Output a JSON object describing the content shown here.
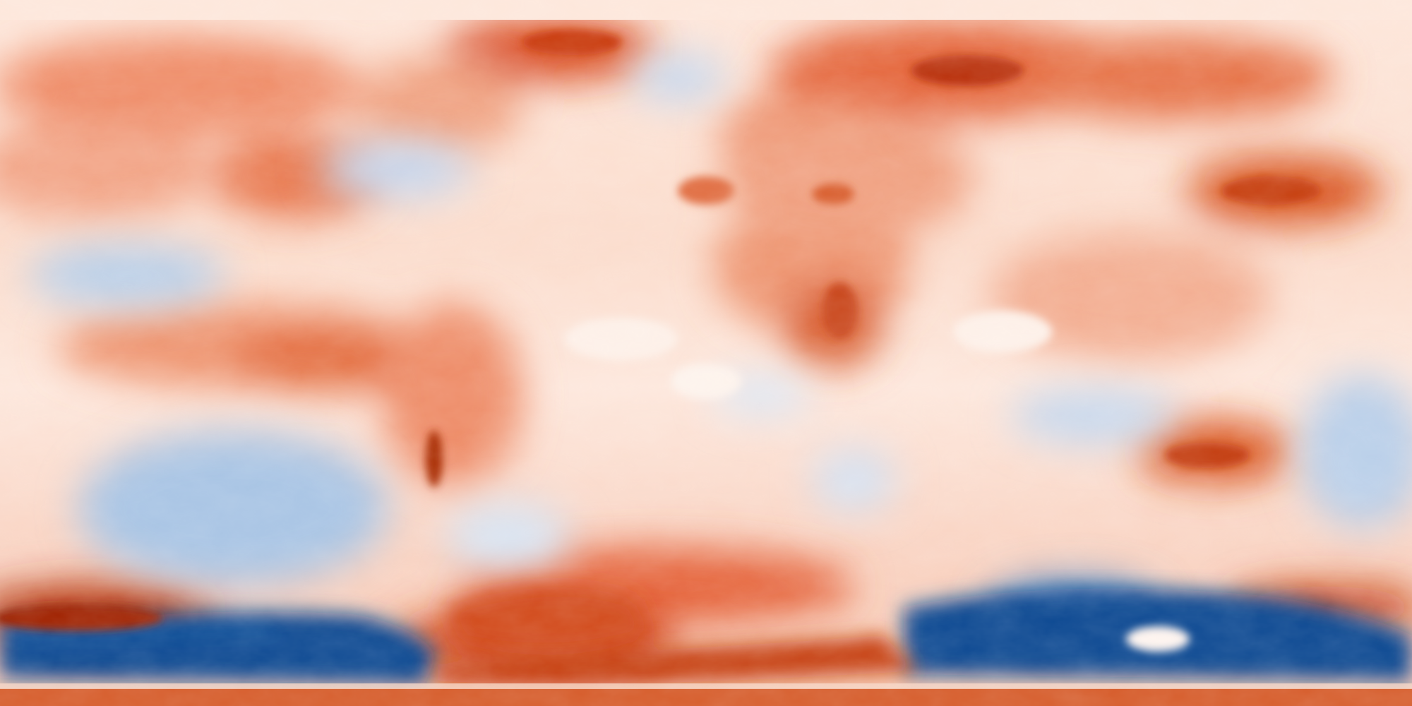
{
  "map": {
    "projection": "equirectangular",
    "extent": "global",
    "colormap": {
      "type": "diverging",
      "low": "#08306b",
      "mid_low": "#6f9fcf",
      "neutral": "#fdf5ef",
      "mid_high": "#ee8a64",
      "high": "#8a1a06"
    },
    "labels_visible": false,
    "legend_visible": false
  }
}
